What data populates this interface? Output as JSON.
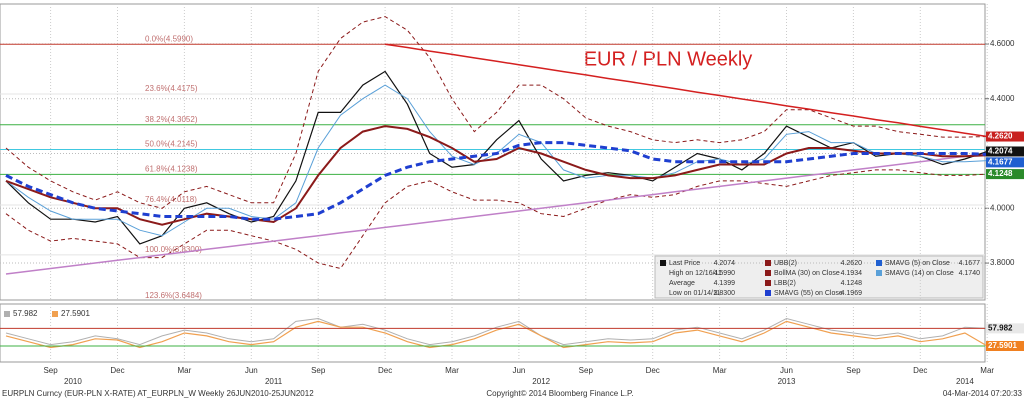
{
  "chart_data": [
    {
      "type": "line",
      "title": "EUR / PLN Weekly",
      "categories": [
        null,
        null,
        "Sep",
        null,
        null,
        "Dec",
        null,
        null,
        "Mar",
        null,
        null,
        "Jun",
        null,
        null,
        "Sep",
        null,
        null,
        "Dec",
        null,
        null,
        "Mar",
        null,
        null,
        "Jun",
        null,
        null,
        "Sep",
        null,
        null,
        "Dec",
        null,
        null,
        "Mar",
        null,
        null,
        "Jun",
        null,
        null,
        "Sep",
        null,
        null,
        "Dec",
        null,
        null,
        "Mar"
      ],
      "x_years": [
        null,
        null,
        null,
        "2010",
        null,
        null,
        null,
        null,
        null,
        null,
        null,
        null,
        "2011",
        null,
        null,
        null,
        null,
        null,
        null,
        null,
        null,
        null,
        null,
        null,
        "2012",
        null,
        null,
        null,
        null,
        null,
        null,
        null,
        null,
        null,
        null,
        "2013",
        null,
        null,
        null,
        null,
        null,
        null,
        null,
        "2014",
        null
      ],
      "series": [
        {
          "name": "UBB(2)",
          "color": "#8b1a1a",
          "linestyle": "dashed",
          "linewidth": 1,
          "values": [
            4.22,
            4.15,
            4.1,
            4.06,
            4.03,
            4.06,
            4.02,
            4.0,
            4.06,
            4.08,
            4.05,
            4.02,
            4.02,
            4.2,
            4.5,
            4.62,
            4.68,
            4.7,
            4.65,
            4.55,
            4.4,
            4.28,
            4.35,
            4.45,
            4.45,
            4.4,
            4.33,
            4.3,
            4.28,
            4.25,
            4.24,
            4.25,
            4.24,
            4.25,
            4.28,
            4.36,
            4.36,
            4.33,
            4.3,
            4.3,
            4.28,
            4.27,
            4.26,
            4.26,
            4.262
          ]
        },
        {
          "name": "LBB(2)",
          "color": "#8b1a1a",
          "linestyle": "dashed",
          "linewidth": 1,
          "values": [
            3.98,
            3.92,
            3.88,
            3.89,
            3.88,
            3.87,
            3.82,
            3.82,
            3.87,
            3.92,
            3.92,
            3.9,
            3.88,
            3.85,
            3.8,
            3.78,
            3.9,
            4.02,
            4.08,
            4.1,
            4.06,
            4.03,
            4.03,
            4.02,
            3.98,
            3.97,
            4.0,
            4.03,
            4.05,
            4.04,
            4.05,
            4.08,
            4.1,
            4.1,
            4.09,
            4.08,
            4.1,
            4.12,
            4.13,
            4.14,
            4.14,
            4.13,
            4.12,
            4.12,
            4.1248
          ]
        },
        {
          "name": "Trend up",
          "color": "#c080c8",
          "linestyle": "solid",
          "linewidth": 1.5,
          "values": [
            3.76,
            3.77,
            3.78,
            3.79,
            3.8,
            3.81,
            3.82,
            3.83,
            3.84,
            3.85,
            3.86,
            3.87,
            3.88,
            3.89,
            3.9,
            3.91,
            3.92,
            3.93,
            3.94,
            3.95,
            3.96,
            3.97,
            3.98,
            3.99,
            4.0,
            4.01,
            4.02,
            4.03,
            4.04,
            4.05,
            4.06,
            4.07,
            4.08,
            4.09,
            4.1,
            4.11,
            4.12,
            4.13,
            4.14,
            4.15,
            4.16,
            4.17,
            4.18,
            4.19,
            4.2
          ]
        },
        {
          "name": "Trend down",
          "color": "#d42020",
          "linestyle": "solid",
          "linewidth": 1.5,
          "values": [
            null,
            null,
            null,
            null,
            null,
            null,
            null,
            null,
            null,
            null,
            null,
            null,
            null,
            null,
            null,
            null,
            null,
            4.599,
            4.587,
            4.574,
            4.562,
            4.549,
            4.537,
            4.524,
            4.512,
            4.499,
            4.487,
            4.474,
            4.462,
            4.449,
            4.437,
            4.424,
            4.412,
            4.399,
            4.387,
            4.374,
            4.362,
            4.349,
            4.337,
            4.324,
            4.312,
            4.299,
            4.287,
            4.274,
            4.262
          ]
        },
        {
          "name": "Last Price",
          "color": "#111111",
          "linestyle": "solid",
          "linewidth": 1.2,
          "values": [
            4.1,
            4.02,
            3.96,
            3.96,
            3.95,
            3.97,
            3.87,
            3.9,
            4.0,
            4.02,
            3.98,
            3.95,
            3.97,
            4.1,
            4.35,
            4.35,
            4.45,
            4.5,
            4.38,
            4.2,
            4.15,
            4.16,
            4.25,
            4.32,
            4.18,
            4.1,
            4.12,
            4.13,
            4.12,
            4.1,
            4.15,
            4.2,
            4.18,
            4.14,
            4.2,
            4.3,
            4.26,
            4.22,
            4.24,
            4.19,
            4.2,
            4.19,
            4.16,
            4.18,
            4.2074
          ]
        },
        {
          "name": "SMAVG (14) on Close",
          "color": "#5aa0d8",
          "linestyle": "solid",
          "linewidth": 1,
          "values": [
            4.1,
            4.04,
            3.99,
            3.96,
            3.96,
            3.96,
            3.92,
            3.9,
            3.95,
            4.0,
            4.0,
            3.97,
            3.96,
            4.02,
            4.22,
            4.34,
            4.4,
            4.45,
            4.4,
            4.28,
            4.19,
            4.16,
            4.2,
            4.27,
            4.24,
            4.14,
            4.11,
            4.12,
            4.12,
            4.11,
            4.13,
            4.17,
            4.18,
            4.16,
            4.18,
            4.27,
            4.28,
            4.24,
            4.24,
            4.2,
            4.2,
            4.19,
            4.17,
            4.17,
            4.174
          ]
        },
        {
          "name": "BollMA (30) on Close",
          "color": "#8b1a1a",
          "linestyle": "solid",
          "linewidth": 2,
          "values": [
            4.1,
            4.07,
            4.04,
            4.02,
            4.0,
            4.0,
            3.96,
            3.94,
            3.96,
            3.98,
            3.97,
            3.96,
            3.95,
            4.0,
            4.12,
            4.22,
            4.28,
            4.3,
            4.29,
            4.26,
            4.22,
            4.17,
            4.18,
            4.22,
            4.2,
            4.17,
            4.14,
            4.12,
            4.11,
            4.11,
            4.12,
            4.14,
            4.16,
            4.16,
            4.16,
            4.2,
            4.22,
            4.22,
            4.21,
            4.2,
            4.2,
            4.2,
            4.19,
            4.19,
            4.1934
          ]
        },
        {
          "name": "SMAVG (55) on Close",
          "color": "#1f3fd0",
          "linestyle": "dashed",
          "linewidth": 3,
          "values": [
            4.12,
            4.08,
            4.05,
            4.02,
            4.0,
            3.99,
            3.98,
            3.97,
            3.97,
            3.97,
            3.97,
            3.96,
            3.96,
            3.97,
            3.98,
            4.02,
            4.07,
            4.12,
            4.15,
            4.17,
            4.18,
            4.19,
            4.2,
            4.23,
            4.24,
            4.24,
            4.23,
            4.22,
            4.21,
            4.18,
            4.17,
            4.17,
            4.17,
            4.17,
            4.17,
            4.17,
            4.18,
            4.19,
            4.2,
            4.2,
            4.2,
            4.2,
            4.2,
            4.2,
            4.1969
          ]
        }
      ],
      "ylim": [
        3.665,
        4.746
      ],
      "yticks": [
        {
          "value": 3.8,
          "label": "3.8000"
        },
        {
          "value": 4.0,
          "label": "4.0000"
        },
        {
          "value": 4.2,
          "label": "4.2000"
        },
        {
          "value": 4.4,
          "label": "4.4000"
        },
        {
          "value": 4.6,
          "label": "4.6000"
        }
      ],
      "grid": true,
      "fib_levels": [
        {
          "value": 4.599,
          "label": "0.0%(4.5990)",
          "color": "#c0392b"
        },
        {
          "value": 4.4175,
          "label": "23.6%(4.4175)",
          "color": "#e4e4e4"
        },
        {
          "value": 4.3052,
          "label": "38.2%(4.3052)",
          "color": "#3cb043"
        },
        {
          "value": 4.2145,
          "label": "50.0%(4.2145)",
          "color": "#40c8e0"
        },
        {
          "value": 4.1238,
          "label": "61.8%(4.1238)",
          "color": "#3cb043"
        },
        {
          "value": 4.0118,
          "label": "76.4%(4.0118)",
          "color": "#e4e4e4"
        },
        {
          "value": 3.83,
          "label": "100.0%(3.8300)",
          "color": "#e4e4e4"
        },
        {
          "value": 3.6484,
          "label": "123.6%(3.6484)",
          "color": "#e4e4e4"
        }
      ],
      "price_tags": [
        {
          "value": 4.262,
          "label": "4.2620",
          "color": "#c8201e"
        },
        {
          "value": 4.2074,
          "label": "4.2074",
          "color": "#111111"
        },
        {
          "value": 4.1677,
          "label": "4.1677",
          "color": "#1f5fd0"
        },
        {
          "value": 4.1248,
          "label": "4.1248",
          "color": "#2a8a2a"
        }
      ],
      "legend": [
        {
          "label": "Last Price",
          "value": "4.2074",
          "color": "#111111"
        },
        {
          "label": "High on 12/16/11",
          "value": "4.5990"
        },
        {
          "label": "Average",
          "value": "4.1399"
        },
        {
          "label": "Low on 01/14/11",
          "value": "3.8300"
        },
        {
          "label": "UBB(2)",
          "value": "4.2620",
          "color": "#8b1a1a"
        },
        {
          "label": "BollMA (30) on Close",
          "value": "4.1934",
          "color": "#8b1a1a"
        },
        {
          "label": "LBB(2)",
          "value": "4.1248",
          "color": "#8b1a1a"
        },
        {
          "label": "SMAVG (55) on Close",
          "value": "4.1969",
          "color": "#1f3fd0"
        },
        {
          "label": "SMAVG (5) on Close",
          "value": "4.1677",
          "color": "#1f5fd0"
        },
        {
          "label": "SMAVG (14) on Close",
          "value": "4.1740",
          "color": "#5aa0d8"
        }
      ]
    },
    {
      "type": "line",
      "series": [
        {
          "name": "57.982",
          "color": "#b0b0b0",
          "linestyle": "solid",
          "linewidth": 1,
          "values": [
            50,
            40,
            30,
            35,
            45,
            40,
            30,
            45,
            55,
            50,
            40,
            35,
            40,
            70,
            75,
            60,
            65,
            55,
            40,
            30,
            35,
            45,
            60,
            70,
            45,
            30,
            35,
            40,
            38,
            40,
            55,
            60,
            50,
            40,
            55,
            75,
            65,
            55,
            50,
            45,
            50,
            40,
            45,
            60,
            57.982
          ]
        },
        {
          "name": "27.5901",
          "color": "#f0a050",
          "linestyle": "solid",
          "linewidth": 1.2,
          "values": [
            45,
            35,
            25,
            30,
            40,
            38,
            25,
            35,
            50,
            45,
            35,
            30,
            35,
            60,
            70,
            60,
            60,
            50,
            35,
            25,
            30,
            40,
            55,
            65,
            45,
            25,
            30,
            35,
            33,
            35,
            50,
            55,
            45,
            35,
            50,
            70,
            60,
            50,
            45,
            40,
            45,
            35,
            40,
            50,
            27.5901
          ]
        }
      ],
      "ylim": [
        0,
        100
      ],
      "price_tags": [
        {
          "value": 57.982,
          "label": "57.982",
          "color": "#e8e8e8"
        },
        {
          "value": 27.5901,
          "label": "27.5901",
          "color": "#f08020"
        }
      ]
    }
  ],
  "footer": {
    "left": "EURPLN Curncy (EUR-PLN X-RATE) AT_EURPLN_W  Weekly 26JUN2010-25JUN2012",
    "center": "Copyright© 2014 Bloomberg Finance L.P.",
    "right": "04-Mar-2014 07:20:33"
  }
}
